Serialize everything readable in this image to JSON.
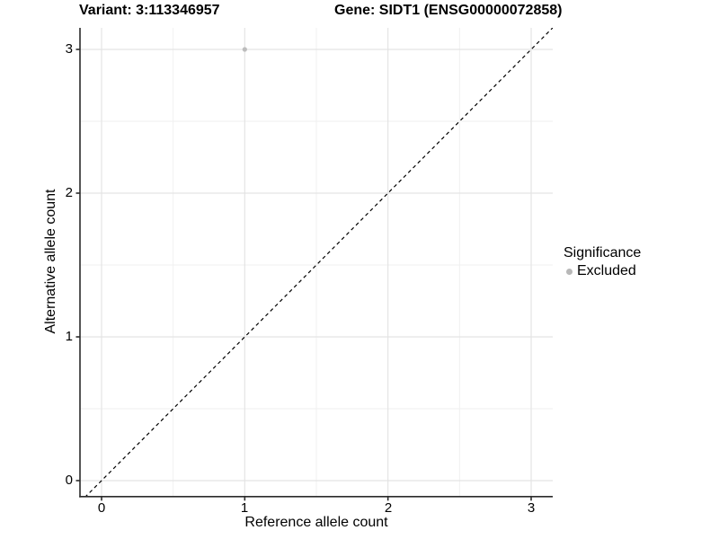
{
  "titles": {
    "variant": "Variant: 3:113346957",
    "gene": "Gene: SIDT1 (ENSG00000072858)"
  },
  "axes": {
    "x_label": "Reference allele count",
    "y_label": "Alternative allele count"
  },
  "legend": {
    "title": "Significance",
    "items": [
      {
        "label": "Excluded",
        "color": "#b8b8b8"
      }
    ]
  },
  "colors": {
    "background": "#ffffff",
    "grid_major": "#e4e4e4",
    "grid_minor": "#efefef",
    "axis_line": "#2b2b2b",
    "tick_mark": "#2b2b2b",
    "point": "#bdbdbd",
    "reference_line": "#000000",
    "text": "#000000"
  },
  "chart_data": {
    "type": "scatter",
    "title": "Variant: 3:113346957 / Gene: SIDT1 (ENSG00000072858)",
    "xlabel": "Reference allele count",
    "ylabel": "Alternative allele count",
    "xlim": [
      -0.15,
      3.15
    ],
    "ylim": [
      -0.15,
      3.15
    ],
    "x_ticks": [
      0,
      1,
      2,
      3
    ],
    "y_ticks": [
      0,
      1,
      2,
      3
    ],
    "x_minor_ticks": [
      0.5,
      1.5,
      2.5
    ],
    "y_minor_ticks": [
      0.5,
      1.5,
      2.5
    ],
    "grid": true,
    "legend_position": "right",
    "series": [
      {
        "name": "Excluded",
        "color": "#bdbdbd",
        "points": [
          {
            "x": 1,
            "y": 3
          }
        ]
      }
    ],
    "reference_line": {
      "equation": "y = x",
      "style": "dashed",
      "color": "#000000"
    }
  }
}
